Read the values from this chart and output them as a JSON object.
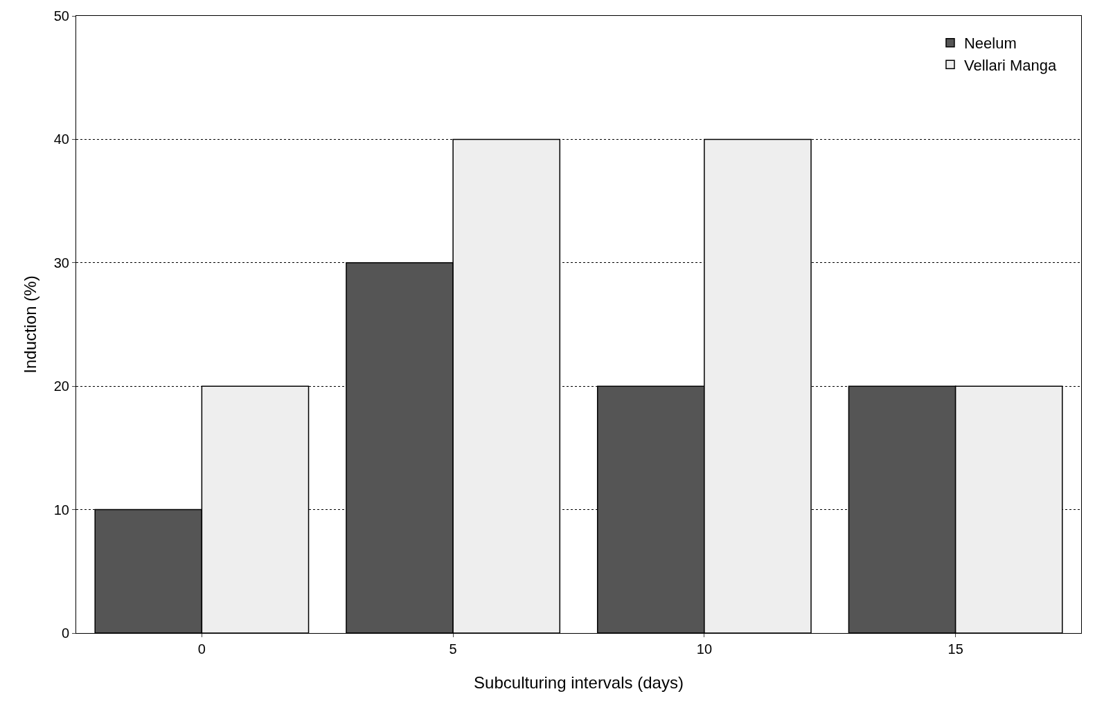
{
  "chart_data": {
    "type": "bar",
    "xlabel": "Subculturing intervals (days)",
    "ylabel": "Induction (%)",
    "categories": [
      "0",
      "5",
      "10",
      "15"
    ],
    "series": [
      {
        "name": "Neelum",
        "color": "#555555",
        "values": [
          10,
          30,
          20,
          20
        ]
      },
      {
        "name": "Vellari Manga",
        "color": "#eeeeee",
        "values": [
          20,
          40,
          40,
          20
        ]
      }
    ],
    "ylim": [
      0,
      50
    ],
    "yticks": [
      0,
      10,
      20,
      30,
      40,
      50
    ],
    "grid": "y",
    "line_style": "dotted",
    "legend": "top right"
  }
}
